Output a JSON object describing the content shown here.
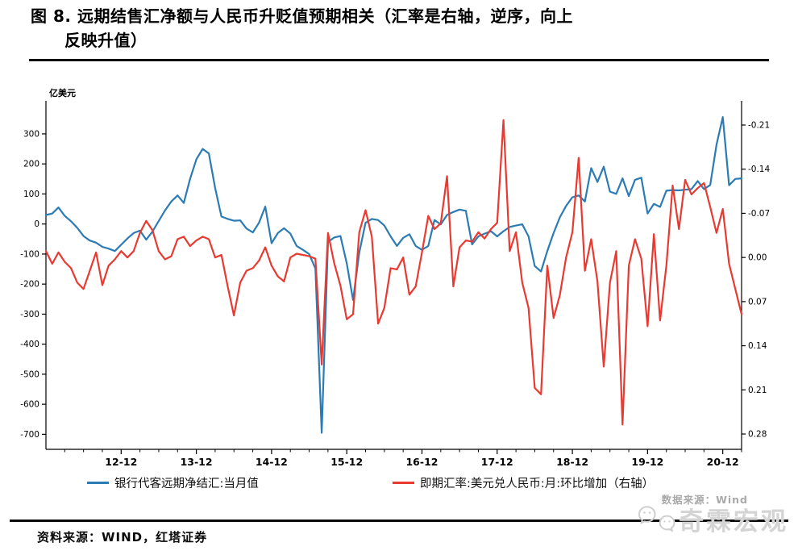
{
  "title": {
    "line1": "图 8. 远期结售汇净额与人民币升贬值预期相关（汇率是右轴，逆序，向上",
    "line2": "反映升值）"
  },
  "footer": {
    "data_source_note": "数据来源：Wind",
    "watermark": "奇霖宏观",
    "source_line": "资料来源：WIND，红塔证券"
  },
  "chart_data": {
    "type": "line",
    "x_interval": "monthly",
    "x_start": "2011-12",
    "x_end": "2021-03",
    "unit_label": "亿美元",
    "grid": false,
    "legend_position": "bottom",
    "left_axis": {
      "range_top": 410,
      "range_bottom": -750,
      "ticks": [
        {
          "v": 300,
          "label": "300"
        },
        {
          "v": 200,
          "label": "200"
        },
        {
          "v": 100,
          "label": "100"
        },
        {
          "v": 0,
          "label": "0"
        },
        {
          "v": -100,
          "label": "-100"
        },
        {
          "v": -200,
          "label": "-200"
        },
        {
          "v": -300,
          "label": "-300"
        },
        {
          "v": -400,
          "label": "-400"
        },
        {
          "v": -500,
          "label": "-500"
        },
        {
          "v": -600,
          "label": "-600"
        },
        {
          "v": -700,
          "label": "-700"
        }
      ]
    },
    "right_axis": {
      "inverted": true,
      "range_top": -0.2484,
      "range_bottom": 0.3043,
      "ticks": [
        {
          "v": -0.21,
          "label": "-0.21"
        },
        {
          "v": -0.14,
          "label": "-0.14"
        },
        {
          "v": -0.07,
          "label": "-0.07"
        },
        {
          "v": 0.0,
          "label": "0.00"
        },
        {
          "v": 0.07,
          "label": "0.07"
        },
        {
          "v": 0.14,
          "label": "0.14"
        },
        {
          "v": 0.21,
          "label": "0.21"
        },
        {
          "v": 0.28,
          "label": "0.28"
        }
      ]
    },
    "x_ticks": [
      {
        "i": 12,
        "label": "12-12"
      },
      {
        "i": 24,
        "label": "13-12"
      },
      {
        "i": 36,
        "label": "14-12"
      },
      {
        "i": 48,
        "label": "15-12"
      },
      {
        "i": 60,
        "label": "16-12"
      },
      {
        "i": 72,
        "label": "17-12"
      },
      {
        "i": 84,
        "label": "18-12"
      },
      {
        "i": 96,
        "label": "19-12"
      },
      {
        "i": 108,
        "label": "20-12"
      }
    ],
    "minor_tick_every": 3,
    "series": [
      {
        "name": "银行代客远期净结汇:当月值",
        "axis": "left",
        "color": "#2b7bb4",
        "values": [
          30,
          35,
          55,
          27,
          9,
          -13,
          -40,
          -55,
          -62,
          -76,
          -82,
          -90,
          -69,
          -48,
          -30,
          -22,
          -52,
          -25,
          10,
          45,
          75,
          95,
          70,
          150,
          215,
          250,
          235,
          120,
          25,
          17,
          11,
          12,
          -15,
          -28,
          4,
          58,
          -64,
          -30,
          -14,
          -32,
          -73,
          -86,
          -100,
          -148,
          -695,
          -60,
          -45,
          -40,
          -131,
          -253,
          -95,
          4,
          17,
          13,
          -5,
          -41,
          -73,
          -46,
          -34,
          -73,
          -86,
          -73,
          13,
          -1,
          30,
          40,
          48,
          44,
          -68,
          -41,
          -32,
          -24,
          -41,
          -24,
          -10,
          -5,
          -1,
          -41,
          -140,
          -158,
          -90,
          -30,
          22,
          60,
          89,
          95,
          75,
          186,
          140,
          191,
          108,
          100,
          152,
          93,
          147,
          154,
          35,
          67,
          57,
          111,
          113,
          112,
          114,
          116,
          143,
          116,
          130,
          264,
          356,
          129,
          150,
          152
        ]
      },
      {
        "name": "即期汇率:美元兑人民币:月:环比增加（右轴）",
        "axis": "right",
        "color": "#e83a31",
        "values": [
          -0.01,
          0.01,
          -0.008,
          0.007,
          0.017,
          0.04,
          0.05,
          0.021,
          -0.008,
          0.044,
          0.013,
          0.003,
          -0.01,
          0.0,
          -0.01,
          -0.039,
          -0.058,
          -0.043,
          -0.01,
          0.003,
          -0.002,
          -0.029,
          -0.033,
          -0.018,
          -0.027,
          -0.033,
          -0.029,
          0.0,
          -0.004,
          0.046,
          0.092,
          0.04,
          0.021,
          0.017,
          0.005,
          -0.016,
          0.013,
          0.03,
          0.038,
          0.0,
          -0.006,
          -0.004,
          -0.002,
          0.002,
          0.17,
          -0.039,
          0.009,
          0.045,
          0.098,
          0.09,
          -0.04,
          -0.075,
          -0.033,
          0.105,
          0.08,
          0.017,
          0.019,
          0.0,
          0.059,
          0.046,
          -0.008,
          -0.066,
          -0.045,
          -0.054,
          -0.129,
          0.046,
          -0.016,
          -0.027,
          -0.025,
          -0.04,
          -0.03,
          -0.045,
          -0.055,
          -0.218,
          -0.01,
          -0.04,
          0.04,
          0.08,
          0.207,
          0.217,
          0.013,
          0.096,
          0.06,
          0.0,
          -0.04,
          -0.158,
          0.021,
          -0.029,
          0.038,
          0.173,
          0.04,
          -0.01,
          0.265,
          0.013,
          -0.029,
          0.002,
          0.109,
          -0.037,
          0.1,
          0.013,
          -0.114,
          -0.045,
          -0.123,
          -0.1,
          -0.11,
          -0.118,
          -0.08,
          -0.039,
          -0.077,
          0.01,
          0.05,
          0.09
        ]
      }
    ]
  }
}
